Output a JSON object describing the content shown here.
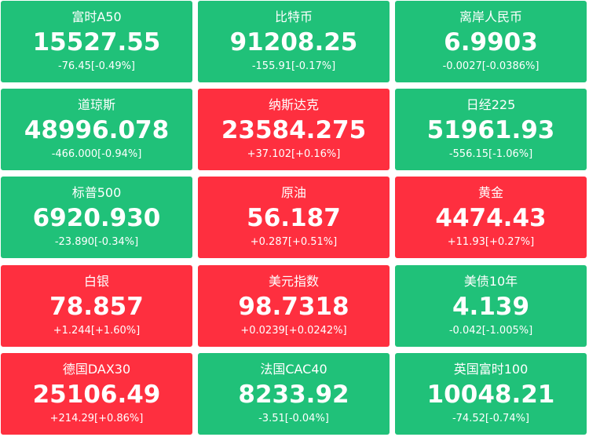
{
  "colors": {
    "down": "#20c179",
    "up": "#fe2f3f",
    "text": "#ffffff"
  },
  "tiles": [
    {
      "name": "富时A50",
      "price": "15527.55",
      "change": "-76.45[-0.49%]",
      "trend": "down"
    },
    {
      "name": "比特币",
      "price": "91208.25",
      "change": "-155.91[-0.17%]",
      "trend": "down"
    },
    {
      "name": "离岸人民币",
      "price": "6.9903",
      "change": "-0.0027[-0.0386%]",
      "trend": "down"
    },
    {
      "name": "道琼斯",
      "price": "48996.078",
      "change": "-466.000[-0.94%]",
      "trend": "down"
    },
    {
      "name": "纳斯达克",
      "price": "23584.275",
      "change": "+37.102[+0.16%]",
      "trend": "up"
    },
    {
      "name": "日经225",
      "price": "51961.93",
      "change": "-556.15[-1.06%]",
      "trend": "down"
    },
    {
      "name": "标普500",
      "price": "6920.930",
      "change": "-23.890[-0.34%]",
      "trend": "down"
    },
    {
      "name": "原油",
      "price": "56.187",
      "change": "+0.287[+0.51%]",
      "trend": "up"
    },
    {
      "name": "黄金",
      "price": "4474.43",
      "change": "+11.93[+0.27%]",
      "trend": "up"
    },
    {
      "name": "白银",
      "price": "78.857",
      "change": "+1.244[+1.60%]",
      "trend": "up"
    },
    {
      "name": "美元指数",
      "price": "98.7318",
      "change": "+0.0239[+0.0242%]",
      "trend": "up"
    },
    {
      "name": "美债10年",
      "price": "4.139",
      "change": "-0.042[-1.005%]",
      "trend": "down"
    },
    {
      "name": "德国DAX30",
      "price": "25106.49",
      "change": "+214.29[+0.86%]",
      "trend": "up"
    },
    {
      "name": "法国CAC40",
      "price": "8233.92",
      "change": "-3.51[-0.04%]",
      "trend": "down"
    },
    {
      "name": "英国富时100",
      "price": "10048.21",
      "change": "-74.52[-0.74%]",
      "trend": "down"
    }
  ]
}
